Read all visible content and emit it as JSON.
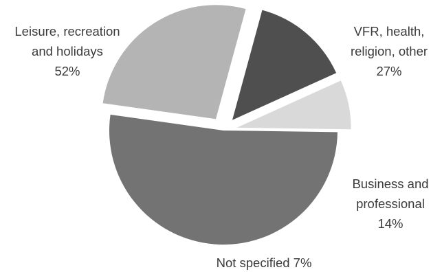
{
  "chart_data": {
    "type": "pie",
    "title": "",
    "slices": [
      {
        "label_lines": [
          "VFR, health,",
          "religion, other"
        ],
        "percent_label": "27%",
        "value": 27,
        "color": "#b4b4b4",
        "exploded": true
      },
      {
        "label_lines": [
          "Business and",
          "professional"
        ],
        "percent_label": "14%",
        "value": 14,
        "color": "#4f4f4f",
        "exploded": true
      },
      {
        "label_lines": [],
        "inline_label": "Not specified 7%",
        "value": 7,
        "color": "#d9d9d9",
        "exploded": true
      },
      {
        "label_lines": [
          "Leisure, recreation",
          "and holidays"
        ],
        "percent_label": "52%",
        "value": 52,
        "color": "#737373",
        "exploded": false
      }
    ]
  }
}
